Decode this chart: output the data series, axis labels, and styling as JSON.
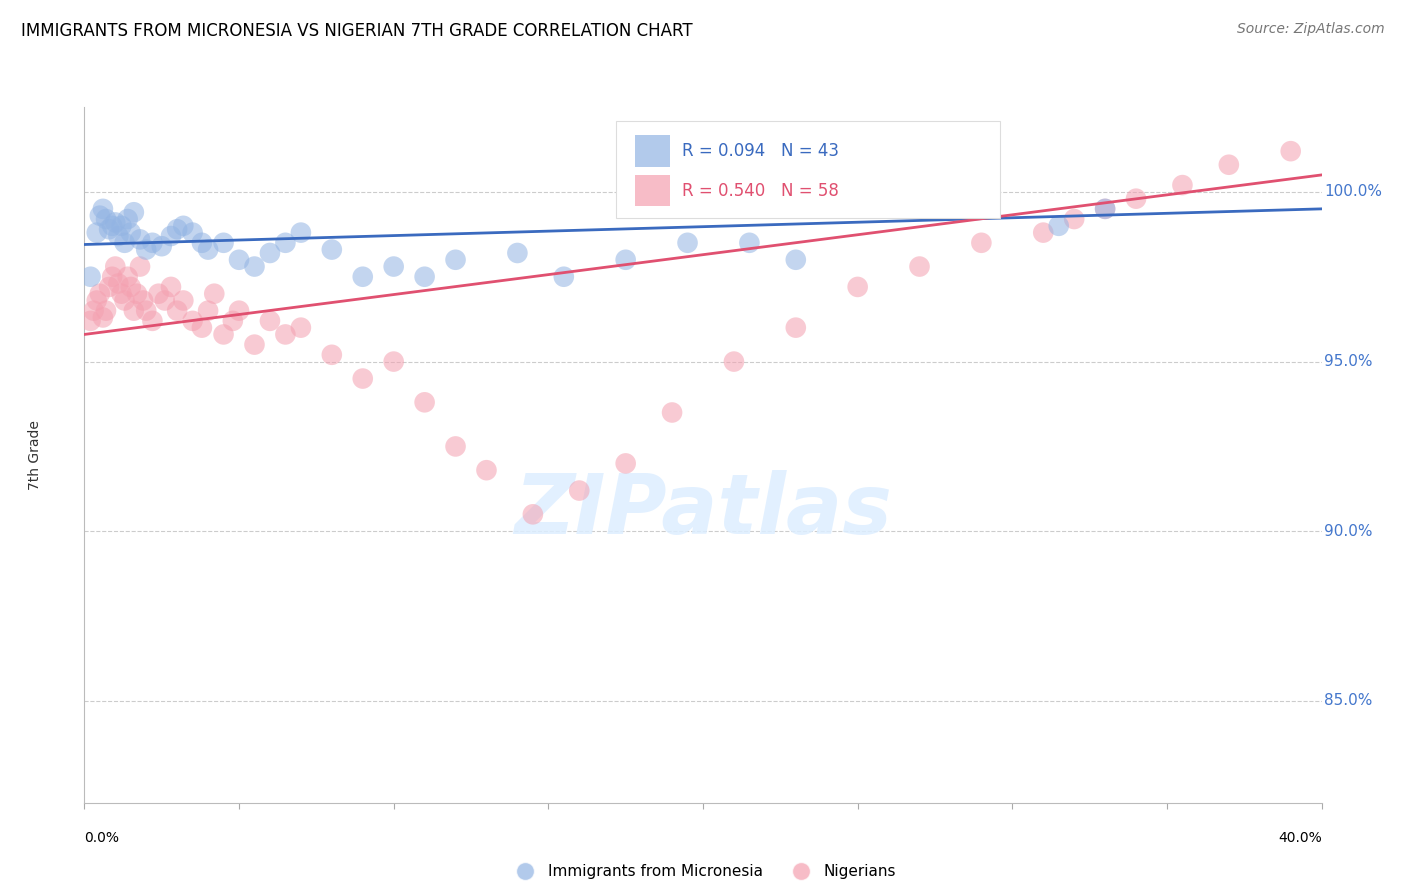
{
  "title": "IMMIGRANTS FROM MICRONESIA VS NIGERIAN 7TH GRADE CORRELATION CHART",
  "source": "Source: ZipAtlas.com",
  "ylabel": "7th Grade",
  "xlim": [
    0.0,
    0.4
  ],
  "ylim": [
    82.0,
    102.5
  ],
  "ytick_vals": [
    85.0,
    90.0,
    95.0,
    100.0
  ],
  "blue_R": 0.094,
  "blue_N": 43,
  "pink_R": 0.54,
  "pink_N": 58,
  "blue_color": "#92b4e3",
  "pink_color": "#f4a0b0",
  "blue_line_color": "#3a6abf",
  "pink_line_color": "#e05070",
  "legend_label_blue": "Immigrants from Micronesia",
  "legend_label_pink": "Nigerians",
  "blue_points_x": [
    0.002,
    0.004,
    0.005,
    0.006,
    0.007,
    0.008,
    0.009,
    0.01,
    0.011,
    0.012,
    0.013,
    0.014,
    0.015,
    0.016,
    0.018,
    0.02,
    0.022,
    0.025,
    0.028,
    0.03,
    0.032,
    0.035,
    0.038,
    0.04,
    0.045,
    0.05,
    0.055,
    0.06,
    0.065,
    0.07,
    0.08,
    0.09,
    0.1,
    0.11,
    0.12,
    0.14,
    0.155,
    0.175,
    0.195,
    0.215,
    0.23,
    0.315,
    0.33
  ],
  "blue_points_y": [
    97.5,
    98.8,
    99.3,
    99.5,
    99.2,
    98.9,
    99.0,
    99.1,
    98.7,
    99.0,
    98.5,
    99.2,
    98.8,
    99.4,
    98.6,
    98.3,
    98.5,
    98.4,
    98.7,
    98.9,
    99.0,
    98.8,
    98.5,
    98.3,
    98.5,
    98.0,
    97.8,
    98.2,
    98.5,
    98.8,
    98.3,
    97.5,
    97.8,
    97.5,
    98.0,
    98.2,
    97.5,
    98.0,
    98.5,
    98.5,
    98.0,
    99.0,
    99.5
  ],
  "pink_points_x": [
    0.002,
    0.003,
    0.004,
    0.005,
    0.006,
    0.007,
    0.008,
    0.009,
    0.01,
    0.011,
    0.012,
    0.013,
    0.014,
    0.015,
    0.016,
    0.017,
    0.018,
    0.019,
    0.02,
    0.022,
    0.024,
    0.026,
    0.028,
    0.03,
    0.032,
    0.035,
    0.038,
    0.04,
    0.042,
    0.045,
    0.048,
    0.05,
    0.055,
    0.06,
    0.065,
    0.07,
    0.08,
    0.09,
    0.1,
    0.11,
    0.12,
    0.13,
    0.145,
    0.16,
    0.175,
    0.19,
    0.21,
    0.23,
    0.25,
    0.27,
    0.29,
    0.31,
    0.32,
    0.33,
    0.34,
    0.355,
    0.37,
    0.39
  ],
  "pink_points_y": [
    96.2,
    96.5,
    96.8,
    97.0,
    96.3,
    96.5,
    97.2,
    97.5,
    97.8,
    97.3,
    97.0,
    96.8,
    97.5,
    97.2,
    96.5,
    97.0,
    97.8,
    96.8,
    96.5,
    96.2,
    97.0,
    96.8,
    97.2,
    96.5,
    96.8,
    96.2,
    96.0,
    96.5,
    97.0,
    95.8,
    96.2,
    96.5,
    95.5,
    96.2,
    95.8,
    96.0,
    95.2,
    94.5,
    95.0,
    93.8,
    92.5,
    91.8,
    90.5,
    91.2,
    92.0,
    93.5,
    95.0,
    96.0,
    97.2,
    97.8,
    98.5,
    98.8,
    99.2,
    99.5,
    99.8,
    100.2,
    100.8,
    101.2
  ]
}
